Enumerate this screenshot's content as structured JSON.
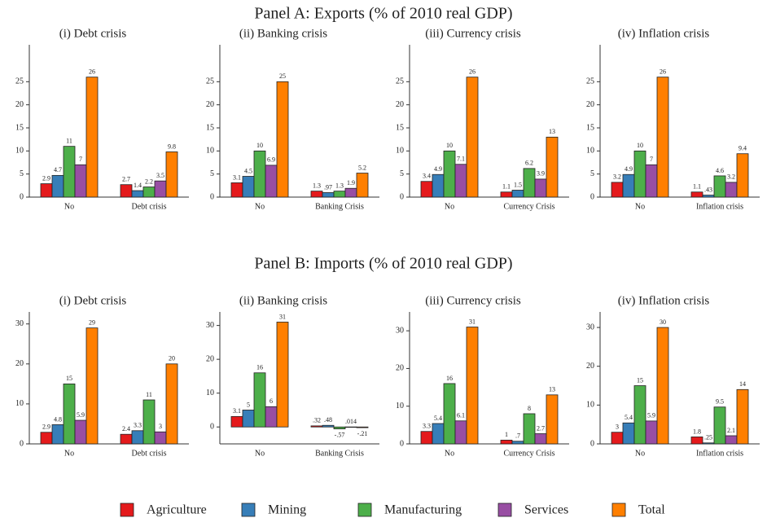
{
  "panels": [
    "Panel A: Exports (% of 2010 real GDP)",
    "Panel B: Imports (% of 2010 real GDP)"
  ],
  "chart_data": [
    {
      "type": "bar",
      "title": "(i) Debt crisis",
      "categories": [
        "No",
        "Debt crisis"
      ],
      "ylim": [
        0,
        33
      ],
      "yticks": [
        0,
        5,
        10,
        15,
        20,
        25
      ],
      "series": [
        {
          "name": "Agriculture",
          "color": "#e41a1c",
          "values": [
            2.9,
            2.7
          ]
        },
        {
          "name": "Mining",
          "color": "#377eb8",
          "values": [
            4.7,
            1.4
          ]
        },
        {
          "name": "Manufacturing",
          "color": "#4daf4a",
          "values": [
            11,
            2.2
          ]
        },
        {
          "name": "Services",
          "color": "#984ea3",
          "values": [
            7,
            3.5
          ]
        },
        {
          "name": "Total",
          "color": "#ff7f00",
          "values": [
            26,
            9.8
          ]
        }
      ]
    },
    {
      "type": "bar",
      "title": "(ii) Banking crisis",
      "categories": [
        "No",
        "Banking Crisis"
      ],
      "ylim": [
        0,
        33
      ],
      "yticks": [
        0,
        5,
        10,
        15,
        20,
        25
      ],
      "series": [
        {
          "name": "Agriculture",
          "color": "#e41a1c",
          "values": [
            3.1,
            1.3
          ]
        },
        {
          "name": "Mining",
          "color": "#377eb8",
          "values": [
            4.5,
            0.97
          ],
          "value_labels": [
            "4.5",
            ".97"
          ]
        },
        {
          "name": "Manufacturing",
          "color": "#4daf4a",
          "values": [
            10,
            1.3
          ]
        },
        {
          "name": "Services",
          "color": "#984ea3",
          "values": [
            6.9,
            1.9
          ]
        },
        {
          "name": "Total",
          "color": "#ff7f00",
          "values": [
            25,
            5.2
          ]
        }
      ]
    },
    {
      "type": "bar",
      "title": "(iii) Currency crisis",
      "categories": [
        "No",
        "Currency Crisis"
      ],
      "ylim": [
        0,
        33
      ],
      "yticks": [
        0,
        5,
        10,
        15,
        20,
        25
      ],
      "series": [
        {
          "name": "Agriculture",
          "color": "#e41a1c",
          "values": [
            3.4,
            1.1
          ]
        },
        {
          "name": "Mining",
          "color": "#377eb8",
          "values": [
            4.9,
            1.5
          ]
        },
        {
          "name": "Manufacturing",
          "color": "#4daf4a",
          "values": [
            10,
            6.2
          ]
        },
        {
          "name": "Services",
          "color": "#984ea3",
          "values": [
            7.1,
            3.9
          ]
        },
        {
          "name": "Total",
          "color": "#ff7f00",
          "values": [
            26,
            13
          ]
        }
      ]
    },
    {
      "type": "bar",
      "title": "(iv) Inflation crisis",
      "categories": [
        "No",
        "Inflation crisis"
      ],
      "ylim": [
        0,
        33
      ],
      "yticks": [
        0,
        5,
        10,
        15,
        20,
        25
      ],
      "series": [
        {
          "name": "Agriculture",
          "color": "#e41a1c",
          "values": [
            3.2,
            1.1
          ]
        },
        {
          "name": "Mining",
          "color": "#377eb8",
          "values": [
            4.9,
            0.43
          ],
          "value_labels": [
            "4.9",
            ".43"
          ]
        },
        {
          "name": "Manufacturing",
          "color": "#4daf4a",
          "values": [
            10,
            4.6
          ]
        },
        {
          "name": "Services",
          "color": "#984ea3",
          "values": [
            7,
            3.2
          ]
        },
        {
          "name": "Total",
          "color": "#ff7f00",
          "values": [
            26,
            9.4
          ]
        }
      ]
    },
    {
      "type": "bar",
      "title": "(i) Debt crisis",
      "categories": [
        "No",
        "Debt crisis"
      ],
      "ylim": [
        0,
        33
      ],
      "yticks": [
        0,
        10,
        20,
        30
      ],
      "series": [
        {
          "name": "Agriculture",
          "color": "#e41a1c",
          "values": [
            2.9,
            2.4
          ]
        },
        {
          "name": "Mining",
          "color": "#377eb8",
          "values": [
            4.8,
            3.3
          ]
        },
        {
          "name": "Manufacturing",
          "color": "#4daf4a",
          "values": [
            15,
            11
          ]
        },
        {
          "name": "Services",
          "color": "#984ea3",
          "values": [
            5.9,
            3
          ]
        },
        {
          "name": "Total",
          "color": "#ff7f00",
          "values": [
            29,
            20
          ]
        }
      ]
    },
    {
      "type": "bar",
      "title": "(ii) Banking crisis",
      "categories": [
        "No",
        "Banking Crisis"
      ],
      "ylim": [
        -5,
        34
      ],
      "yticks": [
        0,
        10,
        20,
        30
      ],
      "series": [
        {
          "name": "Agriculture",
          "color": "#e41a1c",
          "values": [
            3.1,
            0.32
          ],
          "value_labels": [
            "3.1",
            ".32"
          ]
        },
        {
          "name": "Mining",
          "color": "#377eb8",
          "values": [
            5,
            0.48
          ],
          "value_labels": [
            "5",
            ".48"
          ]
        },
        {
          "name": "Manufacturing",
          "color": "#4daf4a",
          "values": [
            16,
            -0.57
          ],
          "value_labels": [
            "16",
            "-.57"
          ]
        },
        {
          "name": "Services",
          "color": "#984ea3",
          "values": [
            6,
            0.014
          ],
          "value_labels": [
            "6",
            ".014"
          ]
        },
        {
          "name": "Total",
          "color": "#ff7f00",
          "values": [
            31,
            -0.21
          ],
          "value_labels": [
            "31",
            "-.21"
          ]
        }
      ]
    },
    {
      "type": "bar",
      "title": "(iii) Currency crisis",
      "categories": [
        "No",
        "Currency Crisis"
      ],
      "ylim": [
        0,
        35
      ],
      "yticks": [
        0,
        10,
        20,
        30
      ],
      "series": [
        {
          "name": "Agriculture",
          "color": "#e41a1c",
          "values": [
            3.3,
            1
          ]
        },
        {
          "name": "Mining",
          "color": "#377eb8",
          "values": [
            5.4,
            0.7
          ],
          "value_labels": [
            "5.4",
            ".7"
          ]
        },
        {
          "name": "Manufacturing",
          "color": "#4daf4a",
          "values": [
            16,
            8
          ]
        },
        {
          "name": "Services",
          "color": "#984ea3",
          "values": [
            6.1,
            2.7
          ]
        },
        {
          "name": "Total",
          "color": "#ff7f00",
          "values": [
            31,
            13
          ]
        }
      ]
    },
    {
      "type": "bar",
      "title": "(iv) Inflation crisis",
      "categories": [
        "No",
        "Inflation crisis"
      ],
      "ylim": [
        0,
        34
      ],
      "yticks": [
        0,
        10,
        20,
        30
      ],
      "series": [
        {
          "name": "Agriculture",
          "color": "#e41a1c",
          "values": [
            3,
            1.8
          ]
        },
        {
          "name": "Mining",
          "color": "#377eb8",
          "values": [
            5.4,
            0.25
          ],
          "value_labels": [
            "5.4",
            ".25"
          ]
        },
        {
          "name": "Manufacturing",
          "color": "#4daf4a",
          "values": [
            15,
            9.5
          ]
        },
        {
          "name": "Services",
          "color": "#984ea3",
          "values": [
            5.9,
            2.1
          ]
        },
        {
          "name": "Total",
          "color": "#ff7f00",
          "values": [
            30,
            14
          ]
        }
      ]
    }
  ]
}
